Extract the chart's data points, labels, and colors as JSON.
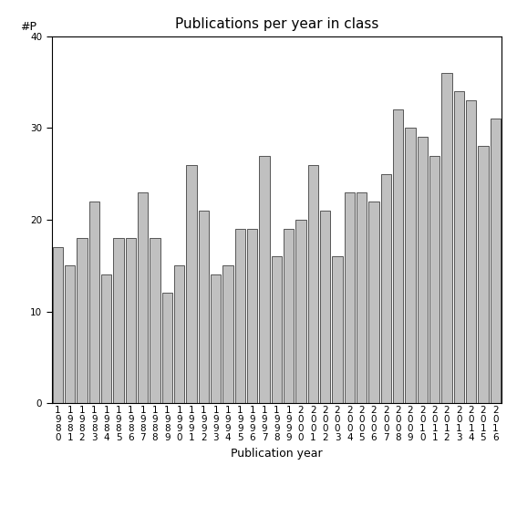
{
  "title": "Publications per year in class",
  "xlabel": "Publication year",
  "ylabel": "#P",
  "years": [
    "1980",
    "1981",
    "1982",
    "1983",
    "1984",
    "1985",
    "1986",
    "1987",
    "1988",
    "1989",
    "1990",
    "1991",
    "1992",
    "1993",
    "1994",
    "1995",
    "1996",
    "1997",
    "1998",
    "1999",
    "2000",
    "2001",
    "2002",
    "2003",
    "2004",
    "2005",
    "2006",
    "2007",
    "2008",
    "2009",
    "2010",
    "2011",
    "2012",
    "2013",
    "2014",
    "2015",
    "2016"
  ],
  "values": [
    17,
    15,
    18,
    22,
    14,
    18,
    18,
    23,
    18,
    12,
    15,
    26,
    21,
    14,
    15,
    19,
    19,
    27,
    16,
    19,
    20,
    26,
    21,
    16,
    23,
    23,
    22,
    25,
    32,
    30,
    29,
    27,
    36,
    34,
    33,
    28,
    31
  ],
  "bar_color": "#c0c0c0",
  "bar_edgecolor": "#404040",
  "ylim": [
    0,
    40
  ],
  "yticks": [
    0,
    10,
    20,
    30,
    40
  ],
  "background_color": "#ffffff",
  "title_fontsize": 11,
  "label_fontsize": 9,
  "tick_fontsize": 7.5
}
